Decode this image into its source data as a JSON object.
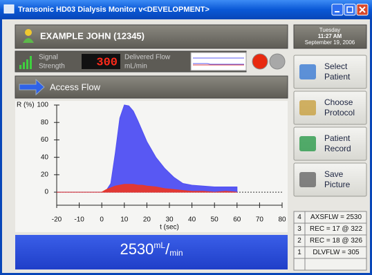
{
  "window": {
    "title": "Transonic HD03 Dialysis Monitor v<DEVELOPMENT>"
  },
  "patient": {
    "name": "EXAMPLE JOHN (12345)"
  },
  "status": {
    "signal_label": [
      "Signal",
      "Strength"
    ],
    "delivered_flow": 300,
    "delivered_label": [
      "Delivered Flow",
      "mL/min"
    ]
  },
  "mode": "Access Flow",
  "chart": {
    "type": "area",
    "ylabel": "R (%)",
    "xlabel": "t (sec)",
    "x": [
      -20,
      -15,
      -10,
      -5,
      0,
      2,
      4,
      6,
      8,
      10,
      12,
      14,
      16,
      18,
      20,
      24,
      28,
      32,
      36,
      40,
      45,
      50,
      55,
      60
    ],
    "series": [
      {
        "color": "#4f4ff2",
        "values": [
          0,
          0,
          0,
          0,
          0,
          2,
          10,
          45,
          85,
          100,
          99,
          93,
          82,
          70,
          58,
          40,
          27,
          17,
          10,
          8,
          7,
          6,
          6,
          6
        ]
      },
      {
        "color": "#e8372a",
        "values": [
          0,
          0,
          0,
          0,
          0,
          3,
          5,
          7,
          8,
          9,
          9,
          9,
          8,
          8,
          7,
          6,
          4,
          3,
          2,
          1,
          1,
          0,
          1,
          0
        ]
      }
    ],
    "xlim": [
      -20,
      80
    ],
    "ylim": [
      -15,
      100
    ],
    "xticks": [
      -20,
      -10,
      0,
      10,
      20,
      30,
      40,
      50,
      60,
      70,
      80
    ],
    "yticks": [
      0,
      20,
      40,
      60,
      80,
      100
    ]
  },
  "result": {
    "value": 2530,
    "unit_parts": [
      "mL",
      "/",
      "min"
    ]
  },
  "datetime": {
    "day": "Tuesday",
    "time": "11:27 AM",
    "date": "September 19, 2006"
  },
  "buttons": [
    {
      "lines": [
        "Select",
        "Patient"
      ]
    },
    {
      "lines": [
        "Choose",
        "Protocol"
      ]
    },
    {
      "lines": [
        "Patient",
        "Record"
      ]
    },
    {
      "lines": [
        "Save",
        "Picture"
      ]
    }
  ],
  "history": [
    [
      4,
      "AXSFLW = 2530"
    ],
    [
      3,
      "REC = 17 @ 322"
    ],
    [
      2,
      "REC = 18 @ 326"
    ],
    [
      1,
      "DLVFLW = 305"
    ]
  ]
}
